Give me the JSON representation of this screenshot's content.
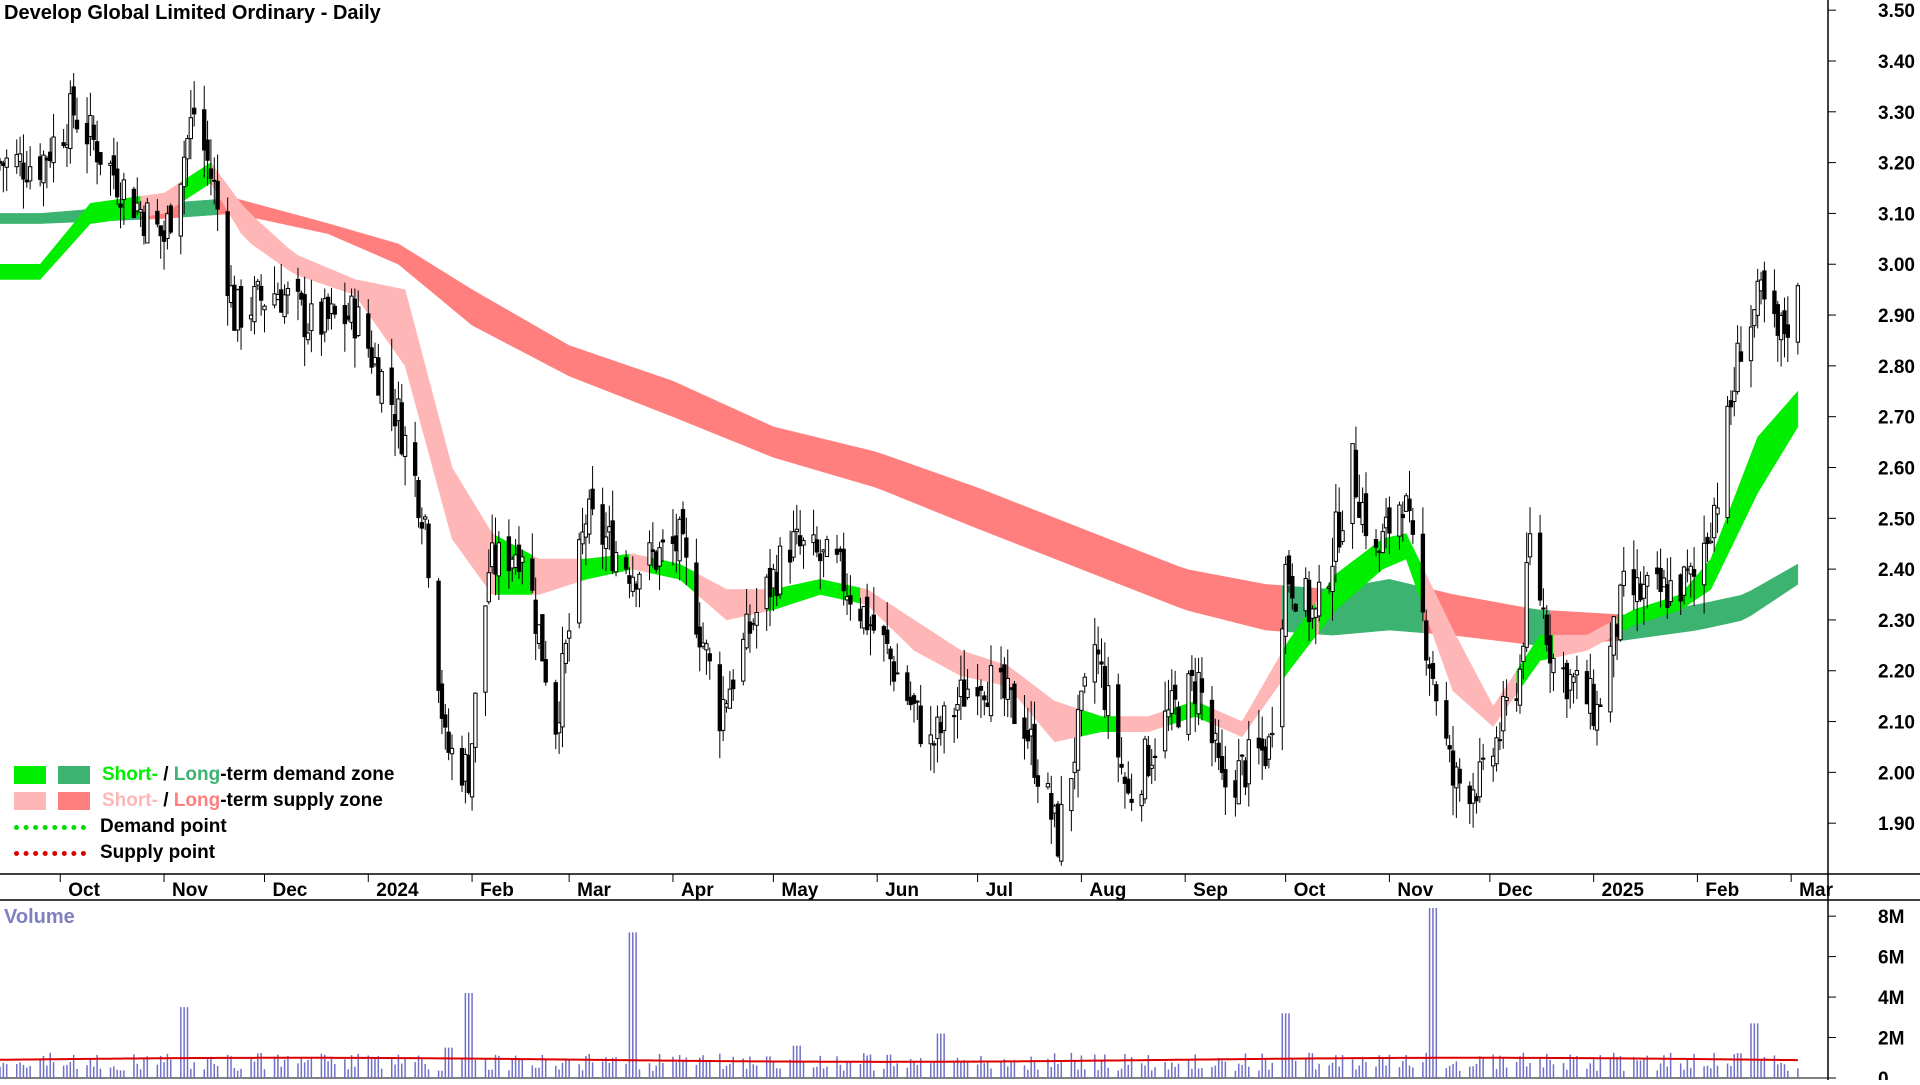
{
  "title": "Develop Global Limited Ordinary - Daily",
  "volume_panel": {
    "title": "Volume"
  },
  "legend": {
    "demand_zone": {
      "short": "Short-",
      "sep": " / ",
      "long": "Long",
      "rest": "-term demand zone",
      "short_color": "#00ee00",
      "long_color": "#3cb371"
    },
    "supply_zone": {
      "short": "Short-",
      "sep": " / ",
      "long": "Long",
      "rest": "-term supply zone",
      "short_color": "#ffb6b6",
      "long_color": "#ff7f7f"
    },
    "demand_point": {
      "label": "Demand point",
      "color": "#00dd00"
    },
    "supply_point": {
      "label": "Supply point",
      "color": "#dd0000"
    }
  },
  "colors": {
    "candle": "#000000",
    "short_demand": "#00ee00",
    "long_demand": "#3cb371",
    "short_supply": "#ffb6b6",
    "long_supply": "#ff7f7f",
    "transition": "#ff7f2a",
    "volume_bar": "#7070c8",
    "volume_avg": "#dd0000"
  },
  "chart_data": {
    "type": "candlestick",
    "title": "Develop Global Limited Ordinary - Daily",
    "y_axis": {
      "ylim": [
        1.8,
        3.52
      ],
      "ticks": [
        "3.50",
        "3.40",
        "3.30",
        "3.20",
        "3.10",
        "3.00",
        "2.90",
        "2.80",
        "2.70",
        "2.60",
        "2.50",
        "2.40",
        "2.30",
        "2.20",
        "2.10",
        "2.00",
        "1.90"
      ]
    },
    "x_axis": {
      "labels": [
        "Oct",
        "Nov",
        "Dec",
        "2024",
        "Feb",
        "Mar",
        "Apr",
        "May",
        "Jun",
        "Jul",
        "Aug",
        "Sep",
        "Oct",
        "Nov",
        "Dec",
        "2025",
        "Feb",
        "Mar"
      ]
    },
    "price_path": [
      [
        "2023-09-25",
        3.2
      ],
      [
        "2023-10-05",
        3.3
      ],
      [
        "2023-10-20",
        3.15
      ],
      [
        "2023-11-01",
        3.05
      ],
      [
        "2023-11-10",
        3.3
      ],
      [
        "2023-11-16",
        3.15
      ],
      [
        "2023-11-22",
        2.9
      ],
      [
        "2023-12-05",
        2.95
      ],
      [
        "2023-12-15",
        2.88
      ],
      [
        "2023-12-28",
        2.9
      ],
      [
        "2024-01-10",
        2.7
      ],
      [
        "2024-01-18",
        2.5
      ],
      [
        "2024-01-24",
        2.05
      ],
      [
        "2024-01-31",
        2.0
      ],
      [
        "2024-02-06",
        2.4
      ],
      [
        "2024-02-16",
        2.45
      ],
      [
        "2024-02-26",
        2.1
      ],
      [
        "2024-03-06",
        2.5
      ],
      [
        "2024-03-20",
        2.4
      ],
      [
        "2024-04-03",
        2.45
      ],
      [
        "2024-04-15",
        2.12
      ],
      [
        "2024-04-25",
        2.3
      ],
      [
        "2024-05-06",
        2.45
      ],
      [
        "2024-05-20",
        2.4
      ],
      [
        "2024-06-03",
        2.25
      ],
      [
        "2024-06-17",
        2.05
      ],
      [
        "2024-07-01",
        2.2
      ],
      [
        "2024-07-15",
        2.1
      ],
      [
        "2024-07-25",
        1.87
      ],
      [
        "2024-08-05",
        2.25
      ],
      [
        "2024-08-15",
        1.95
      ],
      [
        "2024-08-26",
        2.1
      ],
      [
        "2024-09-05",
        2.18
      ],
      [
        "2024-09-12",
        1.97
      ],
      [
        "2024-09-26",
        2.05
      ],
      [
        "2024-10-01",
        2.4
      ],
      [
        "2024-10-10",
        2.3
      ],
      [
        "2024-10-21",
        2.6
      ],
      [
        "2024-10-28",
        2.42
      ],
      [
        "2024-11-05",
        2.55
      ],
      [
        "2024-11-11",
        2.3
      ],
      [
        "2024-11-20",
        1.98
      ],
      [
        "2024-11-29",
        1.98
      ],
      [
        "2024-12-10",
        2.2
      ],
      [
        "2024-12-13",
        2.45
      ],
      [
        "2024-12-20",
        2.22
      ],
      [
        "2025-01-02",
        2.12
      ],
      [
        "2025-01-10",
        2.35
      ],
      [
        "2025-01-20",
        2.35
      ],
      [
        "2025-01-31",
        2.38
      ],
      [
        "2025-02-07",
        2.55
      ],
      [
        "2025-02-14",
        2.85
      ],
      [
        "2025-02-20",
        2.93
      ],
      [
        "2025-02-25",
        2.85
      ],
      [
        "2025-03-03",
        2.93
      ]
    ],
    "short_term_band": [
      [
        "2023-09-25",
        2.97,
        3.0
      ],
      [
        "2023-10-10",
        3.08,
        3.12
      ],
      [
        "2023-11-01",
        3.1,
        3.14
      ],
      [
        "2023-11-15",
        3.16,
        3.2
      ],
      [
        "2023-11-25",
        3.05,
        3.11
      ],
      [
        "2023-12-10",
        2.98,
        3.02
      ],
      [
        "2023-12-28",
        2.94,
        2.97
      ],
      [
        "2024-01-12",
        2.8,
        2.95
      ],
      [
        "2024-01-26",
        2.46,
        2.6
      ],
      [
        "2024-02-07",
        2.35,
        2.47
      ],
      [
        "2024-02-21",
        2.35,
        2.42
      ],
      [
        "2024-03-06",
        2.38,
        2.42
      ],
      [
        "2024-03-20",
        2.4,
        2.43
      ],
      [
        "2024-04-03",
        2.38,
        2.41
      ],
      [
        "2024-04-17",
        2.3,
        2.36
      ],
      [
        "2024-05-01",
        2.32,
        2.36
      ],
      [
        "2024-05-15",
        2.35,
        2.38
      ],
      [
        "2024-05-29",
        2.33,
        2.36
      ],
      [
        "2024-06-12",
        2.24,
        2.3
      ],
      [
        "2024-06-26",
        2.19,
        2.24
      ],
      [
        "2024-07-10",
        2.17,
        2.21
      ],
      [
        "2024-07-24",
        2.06,
        2.14
      ],
      [
        "2024-08-07",
        2.08,
        2.11
      ],
      [
        "2024-08-21",
        2.08,
        2.11
      ],
      [
        "2024-09-04",
        2.11,
        2.14
      ],
      [
        "2024-09-18",
        2.07,
        2.1
      ],
      [
        "2024-10-02",
        2.2,
        2.26
      ],
      [
        "2024-10-16",
        2.32,
        2.39
      ],
      [
        "2024-10-30",
        2.4,
        2.46
      ],
      [
        "2024-11-06",
        2.42,
        2.47
      ],
      [
        "2024-11-20",
        2.16,
        2.28
      ],
      [
        "2024-12-02",
        2.09,
        2.13
      ],
      [
        "2024-12-16",
        2.22,
        2.27
      ],
      [
        "2024-12-30",
        2.24,
        2.27
      ],
      [
        "2025-01-13",
        2.29,
        2.32
      ],
      [
        "2025-01-27",
        2.32,
        2.35
      ],
      [
        "2025-02-05",
        2.36,
        2.42
      ],
      [
        "2025-02-19",
        2.55,
        2.66
      ],
      [
        "2025-03-03",
        2.68,
        2.75
      ]
    ],
    "long_term_band": [
      [
        "2023-09-25",
        3.08,
        3.1
      ],
      [
        "2023-11-01",
        3.09,
        3.12
      ],
      [
        "2023-11-22",
        3.1,
        3.13
      ],
      [
        "2023-12-20",
        3.06,
        3.08
      ],
      [
        "2024-01-10",
        3.0,
        3.04
      ],
      [
        "2024-02-01",
        2.88,
        2.95
      ],
      [
        "2024-03-01",
        2.78,
        2.84
      ],
      [
        "2024-04-01",
        2.7,
        2.77
      ],
      [
        "2024-05-01",
        2.62,
        2.68
      ],
      [
        "2024-06-01",
        2.56,
        2.63
      ],
      [
        "2024-07-01",
        2.48,
        2.56
      ],
      [
        "2024-08-01",
        2.4,
        2.48
      ],
      [
        "2024-09-01",
        2.32,
        2.4
      ],
      [
        "2024-09-25",
        2.28,
        2.37
      ],
      [
        "2024-10-15",
        2.27,
        2.36
      ],
      [
        "2024-11-01",
        2.28,
        2.38
      ],
      [
        "2024-11-20",
        2.27,
        2.35
      ],
      [
        "2024-12-15",
        2.25,
        2.32
      ],
      [
        "2025-01-10",
        2.26,
        2.31
      ],
      [
        "2025-02-01",
        2.28,
        2.33
      ],
      [
        "2025-02-15",
        2.3,
        2.35
      ],
      [
        "2025-03-03",
        2.37,
        2.41
      ]
    ],
    "volume": {
      "ylim": [
        0,
        8.6
      ],
      "ticks": [
        "8M",
        "6M",
        "4M",
        "2M",
        "0"
      ],
      "spikes": [
        [
          "2023-11-07",
          3.5
        ],
        [
          "2024-01-25",
          1.5
        ],
        [
          "2024-01-31",
          4.2
        ],
        [
          "2024-03-20",
          7.2
        ],
        [
          "2024-10-01",
          3.2
        ],
        [
          "2024-11-14",
          8.4
        ],
        [
          "2024-05-08",
          1.6
        ],
        [
          "2024-06-20",
          2.2
        ],
        [
          "2025-02-18",
          2.7
        ]
      ]
    }
  }
}
